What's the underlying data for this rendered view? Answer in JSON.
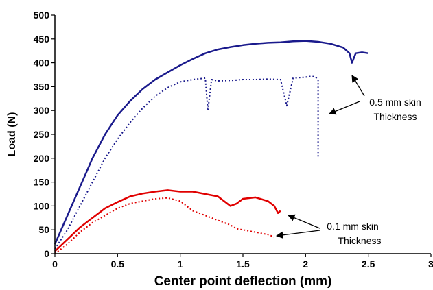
{
  "chart_data": {
    "type": "line",
    "title": "",
    "xlabel": "Center point deflection (mm)",
    "ylabel": "Load (N)",
    "xlim": [
      0,
      3
    ],
    "ylim": [
      0,
      500
    ],
    "xticks": [
      "0",
      "0.5",
      "1",
      "1.5",
      "2",
      "2.5",
      "3"
    ],
    "yticks": [
      "0",
      "50",
      "100",
      "150",
      "200",
      "250",
      "300",
      "350",
      "400",
      "450",
      "500"
    ],
    "grid": false,
    "legend": "none",
    "annotations": [
      {
        "line1": "0.5 mm skin",
        "line2": "Thickness"
      },
      {
        "line1": "0.1 mm skin",
        "line2": "Thickness"
      }
    ],
    "series": [
      {
        "color": "#1a1a8c",
        "style": "solid",
        "x": [
          0,
          0.05,
          0.1,
          0.15,
          0.2,
          0.25,
          0.3,
          0.4,
          0.5,
          0.6,
          0.7,
          0.8,
          0.9,
          1.0,
          1.1,
          1.2,
          1.3,
          1.4,
          1.5,
          1.6,
          1.7,
          1.8,
          1.9,
          2.0,
          2.1,
          2.2,
          2.3,
          2.35,
          2.37,
          2.4,
          2.45,
          2.5
        ],
        "y": [
          20,
          50,
          80,
          110,
          140,
          170,
          200,
          250,
          290,
          320,
          345,
          365,
          380,
          395,
          408,
          420,
          428,
          433,
          437,
          440,
          442,
          443,
          445,
          446,
          444,
          440,
          432,
          420,
          400,
          420,
          422,
          420
        ]
      },
      {
        "color": "#1a1a8c",
        "style": "dotted",
        "x": [
          0,
          0.1,
          0.2,
          0.3,
          0.4,
          0.5,
          0.6,
          0.7,
          0.8,
          0.9,
          1.0,
          1.1,
          1.2,
          1.22,
          1.25,
          1.3,
          1.4,
          1.5,
          1.6,
          1.7,
          1.8,
          1.85,
          1.9,
          2.0,
          2.05,
          2.08,
          2.1,
          2.1
        ],
        "y": [
          10,
          50,
          100,
          150,
          200,
          240,
          275,
          305,
          330,
          348,
          360,
          365,
          368,
          300,
          365,
          362,
          363,
          365,
          365,
          366,
          365,
          310,
          368,
          370,
          372,
          370,
          365,
          200
        ]
      },
      {
        "color": "#e00000",
        "style": "solid",
        "x": [
          0,
          0.1,
          0.2,
          0.3,
          0.4,
          0.5,
          0.6,
          0.7,
          0.8,
          0.9,
          1.0,
          1.1,
          1.2,
          1.3,
          1.4,
          1.45,
          1.5,
          1.6,
          1.7,
          1.75,
          1.78,
          1.8
        ],
        "y": [
          5,
          30,
          55,
          75,
          95,
          108,
          120,
          126,
          130,
          133,
          130,
          130,
          125,
          120,
          100,
          105,
          115,
          118,
          110,
          100,
          85,
          90
        ]
      },
      {
        "color": "#e00000",
        "style": "dotted",
        "x": [
          0,
          0.1,
          0.2,
          0.3,
          0.4,
          0.5,
          0.6,
          0.7,
          0.8,
          0.9,
          1.0,
          1.1,
          1.2,
          1.3,
          1.4,
          1.45,
          1.5,
          1.6,
          1.7,
          1.75
        ],
        "y": [
          0,
          20,
          45,
          65,
          80,
          95,
          105,
          110,
          115,
          117,
          110,
          90,
          80,
          70,
          60,
          52,
          50,
          45,
          40,
          35
        ]
      }
    ]
  }
}
